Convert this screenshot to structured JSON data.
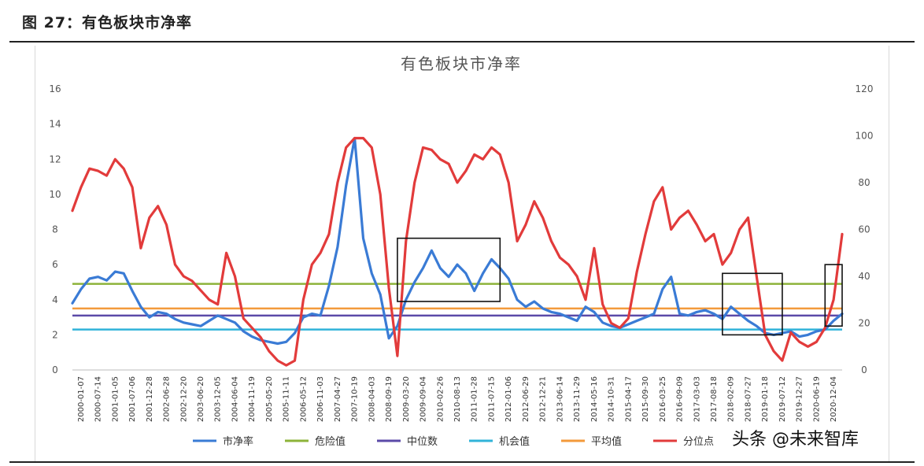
{
  "figure": {
    "caption": "图  27：有色板块市净率",
    "watermark": "头条 @未来智库"
  },
  "colors": {
    "pb": "#3a7bd5",
    "danger": "#8db33a",
    "median": "#5b4aa8",
    "opportunity": "#31b3d9",
    "average": "#f39a3b",
    "percentile": "#e23b3b",
    "box": "#111111"
  },
  "chart_data": {
    "type": "line",
    "title": "有色板块市净率",
    "ylim_left": [
      0,
      16
    ],
    "yticks_left": [
      "0",
      "2",
      "4",
      "6",
      "8",
      "10",
      "12",
      "14",
      "16"
    ],
    "ylim_right": [
      0,
      120
    ],
    "yticks_right": [
      "0",
      "20",
      "40",
      "60",
      "80",
      "100",
      "120"
    ],
    "x_tick_labels": [
      "2000-01-07",
      "2000-07-14",
      "2001-01-05",
      "2001-07-06",
      "2001-12-28",
      "2002-06-28",
      "2002-12-20",
      "2003-06-20",
      "2003-12-05",
      "2004-06-04",
      "2004-11-19",
      "2005-05-20",
      "2005-11-11",
      "2006-05-12",
      "2006-11-03",
      "2007-04-27",
      "2007-10-19",
      "2008-04-03",
      "2008-09-19",
      "2009-03-20",
      "2009-09-04",
      "2010-02-26",
      "2010-08-13",
      "2011-01-28",
      "2011-07-15",
      "2012-01-06",
      "2012-06-29",
      "2012-12-21",
      "2013-06-14",
      "2013-11-29",
      "2014-05-16",
      "2014-10-31",
      "2015-04-17",
      "2015-09-30",
      "2016-03-25",
      "2016-09-09",
      "2017-03-03",
      "2017-08-18",
      "2018-02-09",
      "2018-07-27",
      "2019-01-18",
      "2019-07-12",
      "2019-12-27",
      "2020-06-19",
      "2020-12-04"
    ],
    "reference_lines": [
      {
        "name": "危险值",
        "axis": "left",
        "value": 4.9
      },
      {
        "name": "中位数",
        "axis": "left",
        "value": 3.1
      },
      {
        "name": "机会值",
        "axis": "left",
        "value": 2.3
      },
      {
        "name": "平均值",
        "axis": "left",
        "value": 3.5
      }
    ],
    "series": [
      {
        "name": "市净率",
        "axis": "left",
        "values": [
          3.8,
          4.6,
          5.2,
          5.3,
          5.1,
          5.6,
          5.5,
          4.5,
          3.6,
          3.0,
          3.3,
          3.2,
          2.9,
          2.7,
          2.6,
          2.5,
          2.8,
          3.1,
          2.9,
          2.7,
          2.2,
          1.9,
          1.7,
          1.6,
          1.5,
          1.6,
          2.1,
          3.0,
          3.2,
          3.1,
          4.8,
          7.0,
          10.5,
          13.2,
          7.5,
          5.5,
          4.3,
          1.8,
          2.5,
          4.0,
          5.0,
          5.8,
          6.8,
          5.8,
          5.3,
          6.0,
          5.5,
          4.5,
          5.5,
          6.3,
          5.8,
          5.2,
          4.0,
          3.6,
          3.9,
          3.5,
          3.3,
          3.2,
          3.0,
          2.8,
          3.6,
          3.3,
          2.7,
          2.5,
          2.4,
          2.6,
          2.8,
          3.0,
          3.2,
          4.6,
          5.3,
          3.2,
          3.1,
          3.3,
          3.4,
          3.2,
          2.9,
          3.6,
          3.2,
          2.8,
          2.5,
          2.1,
          2.0,
          2.1,
          2.2,
          1.9,
          2.0,
          2.2,
          2.3,
          2.8,
          3.2
        ]
      },
      {
        "name": "分位点",
        "axis": "right",
        "values": [
          68,
          78,
          86,
          85,
          83,
          90,
          86,
          78,
          52,
          65,
          70,
          62,
          45,
          40,
          38,
          34,
          30,
          28,
          50,
          40,
          22,
          18,
          14,
          8,
          4,
          2,
          4,
          30,
          45,
          50,
          58,
          80,
          95,
          99,
          99,
          95,
          75,
          35,
          6,
          55,
          80,
          95,
          94,
          90,
          88,
          80,
          85,
          92,
          90,
          95,
          92,
          80,
          55,
          62,
          72,
          65,
          55,
          48,
          45,
          40,
          30,
          52,
          28,
          20,
          18,
          22,
          42,
          58,
          72,
          78,
          60,
          65,
          68,
          62,
          55,
          58,
          45,
          50,
          60,
          65,
          40,
          15,
          8,
          4,
          16,
          12,
          10,
          12,
          18,
          30,
          58
        ]
      },
      {
        "name": "危险值",
        "axis": "left",
        "values": []
      },
      {
        "name": "中位数",
        "axis": "left",
        "values": []
      },
      {
        "name": "机会值",
        "axis": "left",
        "values": []
      },
      {
        "name": "平均值",
        "axis": "left",
        "values": []
      }
    ],
    "legend": {
      "placement": "bottom",
      "entries": [
        {
          "label": "市净率",
          "color_key": "pb"
        },
        {
          "label": "危险值",
          "color_key": "danger"
        },
        {
          "label": "中位数",
          "color_key": "median"
        },
        {
          "label": "机会值",
          "color_key": "opportunity"
        },
        {
          "label": "平均值",
          "color_key": "average"
        },
        {
          "label": "分位点",
          "color_key": "percentile"
        }
      ]
    },
    "annotation_boxes": [
      {
        "from_index": 38,
        "to_index": 50,
        "y_low": 3.9,
        "y_high": 7.5
      },
      {
        "from_index": 76,
        "to_index": 83,
        "y_low": 2.0,
        "y_high": 5.5
      },
      {
        "from_index": 88,
        "to_index": 90,
        "y_low": 2.5,
        "y_high": 6.0
      }
    ]
  }
}
